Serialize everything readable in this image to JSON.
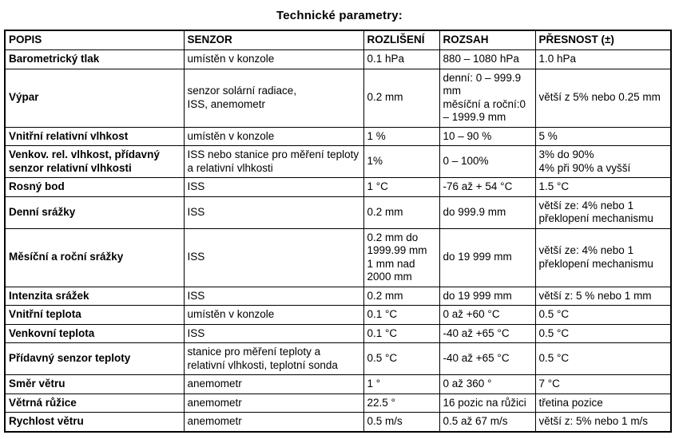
{
  "title": "Technické parametry:",
  "table": {
    "headers": [
      "POPIS",
      "SENZOR",
      "ROZLIŠENÍ",
      "ROZSAH",
      "PŘESNOST (±)"
    ],
    "rows": [
      [
        "Barometrický tlak",
        "umístěn v konzole",
        "0.1 hPa",
        "880 – 1080 hPa",
        "1.0 hPa"
      ],
      [
        "Výpar",
        "senzor solární radiace,\nISS, anemometr",
        "0.2 mm",
        "denní: 0 – 999.9 mm\nměsíční a roční:0 – 1999.9 mm",
        "větší z 5% nebo 0.25 mm"
      ],
      [
        "Vnitřní relativní vlhkost",
        "umístěn v konzole",
        "1 %",
        "10 – 90 %",
        "5 %"
      ],
      [
        "Venkov. rel. vlhkost, přídavný senzor relativní vlhkosti",
        "ISS nebo stanice pro měření teploty a relativní vlhkosti",
        "1%",
        "0 – 100%",
        "3% do 90%\n4% při 90% a vyšší"
      ],
      [
        "Rosný bod",
        "ISS",
        "1 °C",
        "-76 až + 54 °C",
        "1.5 °C"
      ],
      [
        "Denní srážky",
        "ISS",
        "0.2 mm",
        "do 999.9 mm",
        "větší ze: 4% nebo 1 překlopení mechanismu"
      ],
      [
        "Měsíční a roční srážky",
        "ISS",
        "0.2 mm do 1999.99 mm\n1 mm nad 2000 mm",
        "do 19 999 mm",
        "větší ze: 4% nebo 1 překlopení mechanismu"
      ],
      [
        "Intenzita srážek",
        "ISS",
        "0.2 mm",
        "do 19 999 mm",
        "větší z: 5 % nebo 1 mm"
      ],
      [
        "Vnitřní teplota",
        "umístěn v konzole",
        "0.1 °C",
        "0 až +60 °C",
        "0.5 °C"
      ],
      [
        "Venkovní teplota",
        "ISS",
        "0.1 °C",
        "-40 až +65 °C",
        "0.5 °C"
      ],
      [
        "Přídavný senzor teploty",
        "stanice pro měření teploty a relativní vlhkosti, teplotní sonda",
        "0.5 °C",
        "-40 až +65 °C",
        "0.5 °C"
      ],
      [
        "Směr větru",
        "anemometr",
        "1 °",
        "0 až 360 °",
        "7 °C"
      ],
      [
        "Větrná růžice",
        "anemometr",
        "22.5 °",
        "16 pozic na růžici",
        "třetina pozice"
      ],
      [
        "Rychlost větru",
        "anemometr",
        "0.5 m/s",
        "0.5 až 67 m/s",
        "větší z: 5% nebo 1 m/s"
      ]
    ]
  }
}
